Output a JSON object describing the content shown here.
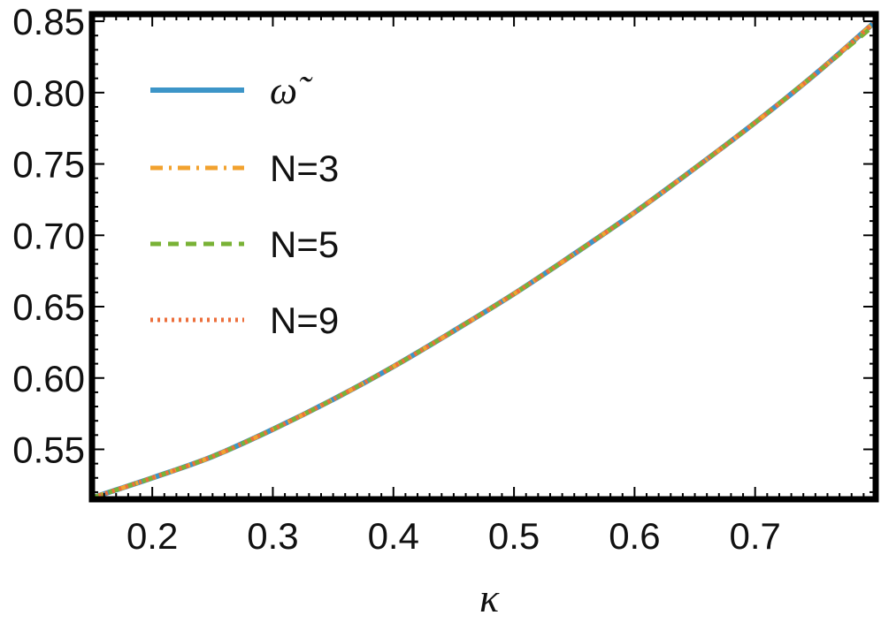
{
  "chart_data": {
    "type": "line",
    "title": "",
    "xlabel": "κ",
    "ylabel": "",
    "xlim": [
      0.15,
      0.8
    ],
    "ylim": [
      0.515,
      0.855
    ],
    "x_ticks": [
      0.2,
      0.3,
      0.4,
      0.5,
      0.6,
      0.7
    ],
    "x_tick_labels": [
      "0.2",
      "0.3",
      "0.4",
      "0.5",
      "0.6",
      "0.7"
    ],
    "y_ticks": [
      0.55,
      0.6,
      0.65,
      0.7,
      0.75,
      0.8,
      0.85
    ],
    "y_tick_labels": [
      "0.55",
      "0.60",
      "0.65",
      "0.70",
      "0.75",
      "0.80",
      "0.85"
    ],
    "legend_position": "top-left",
    "grid": false,
    "x": [
      0.15,
      0.2,
      0.25,
      0.3,
      0.35,
      0.4,
      0.45,
      0.5,
      0.55,
      0.6,
      0.65,
      0.7,
      0.75,
      0.8
    ],
    "series": [
      {
        "name": "ω̃",
        "color": "#3d95c8",
        "style": "solid",
        "values": [
          0.516,
          0.53,
          0.545,
          0.564,
          0.585,
          0.608,
          0.633,
          0.659,
          0.687,
          0.716,
          0.747,
          0.779,
          0.813,
          0.85
        ]
      },
      {
        "name": "N=3",
        "color": "#f2a22f",
        "style": "dashdot",
        "values": [
          0.516,
          0.53,
          0.545,
          0.564,
          0.585,
          0.608,
          0.633,
          0.659,
          0.687,
          0.716,
          0.747,
          0.779,
          0.813,
          0.85
        ]
      },
      {
        "name": "N=5",
        "color": "#79b236",
        "style": "dashed",
        "values": [
          0.516,
          0.53,
          0.545,
          0.564,
          0.585,
          0.608,
          0.633,
          0.659,
          0.687,
          0.716,
          0.747,
          0.779,
          0.813,
          0.848
        ]
      },
      {
        "name": "N=9",
        "color": "#ec6f3c",
        "style": "dotted",
        "values": [
          0.516,
          0.53,
          0.545,
          0.564,
          0.585,
          0.608,
          0.633,
          0.659,
          0.687,
          0.716,
          0.747,
          0.779,
          0.813,
          0.85
        ]
      }
    ]
  }
}
